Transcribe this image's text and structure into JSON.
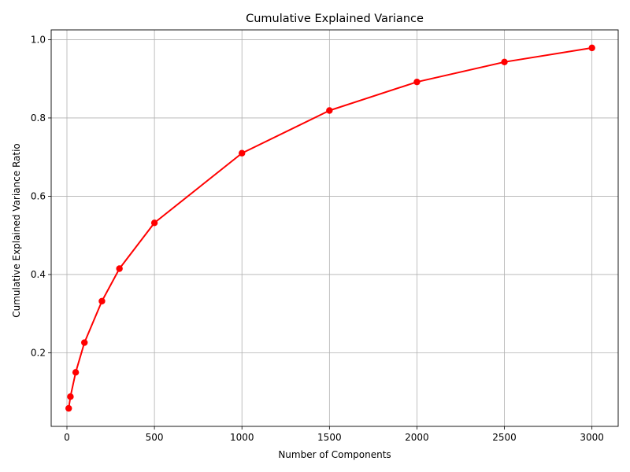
{
  "chart_data": {
    "type": "line",
    "title": "Cumulative Explained Variance",
    "xlabel": "Number of Components",
    "ylabel": "Cumulative Explained Variance Ratio",
    "xlim": [
      -90,
      3150
    ],
    "ylim": [
      0.012,
      1.025
    ],
    "xticks": [
      0,
      500,
      1000,
      1500,
      2000,
      2500,
      3000
    ],
    "yticks": [
      0.2,
      0.4,
      0.6,
      0.8,
      1.0
    ],
    "xtick_labels": [
      "0",
      "500",
      "1000",
      "1500",
      "2000",
      "2500",
      "3000"
    ],
    "ytick_labels": [
      "0.2",
      "0.4",
      "0.6",
      "0.8",
      "1.0"
    ],
    "grid": true,
    "series": [
      {
        "color": "#ff0000",
        "marker": "circle",
        "x": [
          10,
          20,
          50,
          100,
          200,
          300,
          500,
          1000,
          1500,
          2000,
          2500,
          3000
        ],
        "y": [
          0.058,
          0.088,
          0.15,
          0.226,
          0.332,
          0.415,
          0.532,
          0.71,
          0.819,
          0.892,
          0.943,
          0.979
        ]
      }
    ]
  }
}
